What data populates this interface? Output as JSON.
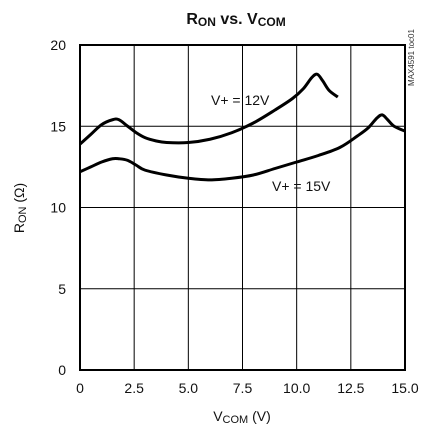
{
  "chart_data": {
    "type": "line",
    "title": {
      "main": "R",
      "main_sub": "ON",
      "mid": " vs. V",
      "end_sub": "COM"
    },
    "xlabel": {
      "main": "V",
      "sub": "COM",
      "tail": " (V)"
    },
    "ylabel": {
      "main": "R",
      "sub": "ON",
      "tail": " (Ω)"
    },
    "xlim": [
      0,
      15
    ],
    "ylim": [
      0,
      20
    ],
    "xticks": [
      0,
      2.5,
      5,
      7.5,
      10,
      12.5,
      15
    ],
    "xtick_labels": [
      "0",
      "2.5",
      "5.0",
      "7.5",
      "10.0",
      "12.5",
      "15.0"
    ],
    "yticks": [
      0,
      5,
      10,
      15,
      20
    ],
    "ytick_labels": [
      "0",
      "5",
      "10",
      "15",
      "20"
    ],
    "grid": true,
    "watermark": "MAX4591 toc01",
    "series": [
      {
        "name": "V+ = 12V",
        "x": [
          0,
          0.5,
          1,
          1.5,
          1.8,
          2.2,
          2.6,
          3.0,
          3.5,
          4,
          5,
          6,
          7,
          8,
          9,
          9.8,
          10.3,
          10.7,
          10.95,
          11.2,
          11.5,
          11.9
        ],
        "y": [
          13.9,
          14.5,
          15.1,
          15.4,
          15.4,
          15.0,
          14.6,
          14.3,
          14.1,
          14.0,
          14.0,
          14.2,
          14.6,
          15.2,
          16.0,
          16.7,
          17.3,
          18.0,
          18.2,
          17.8,
          17.2,
          16.8
        ]
      },
      {
        "name": "V+ = 15V",
        "x": [
          0,
          0.5,
          1,
          1.5,
          1.8,
          2.2,
          2.6,
          3,
          4,
          5,
          6,
          7,
          8,
          9,
          10,
          11,
          12,
          12.8,
          13.3,
          13.7,
          13.95,
          14.2,
          14.5,
          15
        ],
        "y": [
          12.2,
          12.5,
          12.8,
          13.0,
          13.0,
          12.9,
          12.6,
          12.3,
          12.0,
          11.8,
          11.7,
          11.8,
          12.0,
          12.4,
          12.8,
          13.2,
          13.7,
          14.4,
          14.9,
          15.5,
          15.7,
          15.4,
          15.0,
          14.7
        ]
      }
    ]
  }
}
